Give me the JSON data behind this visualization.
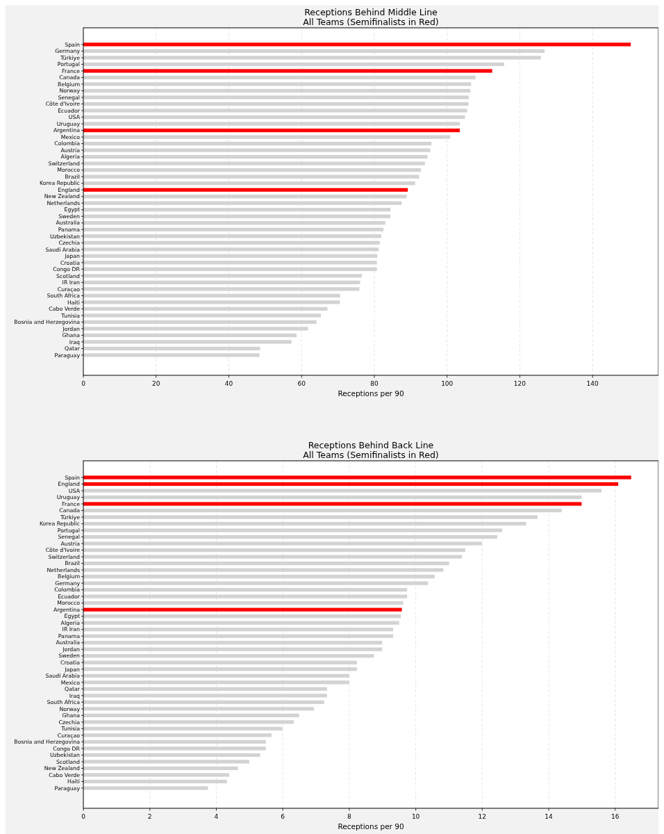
{
  "chart_data": [
    {
      "type": "bar",
      "orientation": "horizontal",
      "title": "Receptions Behind Middle Line",
      "subtitle": "All Teams (Semifinalists in Red)",
      "xlabel": "Receptions per 90",
      "categories": [
        "Spain",
        "Germany",
        "Türkiye",
        "Portugal",
        "France",
        "Canada",
        "Belgium",
        "Norway",
        "Senegal",
        "Côte d'Ivoire",
        "Ecuador",
        "USA",
        "Uruguay",
        "Argentina",
        "Mexico",
        "Colombia",
        "Austria",
        "Algeria",
        "Switzerland",
        "Morocco",
        "Brazil",
        "Korea Republic",
        "England",
        "New Zealand",
        "Netherlands",
        "Egypt",
        "Sweden",
        "Australia",
        "Panama",
        "Uzbekistan",
        "Czechia",
        "Saudi Arabia",
        "Japan",
        "Croatia",
        "Congo DR",
        "Scotland",
        "IR Iran",
        "Curaçao",
        "South Africa",
        "Haiti",
        "Cabo Verde",
        "Tunisia",
        "Bosnia and Herzegovina",
        "Jordan",
        "Ghana",
        "Iraq",
        "Qatar",
        "Paraguay"
      ],
      "values": [
        150.5,
        126.8,
        125.8,
        115.7,
        112.4,
        107.8,
        106.6,
        106.4,
        106.0,
        105.9,
        105.5,
        104.9,
        103.5,
        103.5,
        100.9,
        95.7,
        95.4,
        94.6,
        93.9,
        92.8,
        92.3,
        91.2,
        89.2,
        88.9,
        87.5,
        84.4,
        84.4,
        83.0,
        82.5,
        81.9,
        81.5,
        81.2,
        80.8,
        80.7,
        80.7,
        76.6,
        76.1,
        75.9,
        70.6,
        70.5,
        67.1,
        65.3,
        64.1,
        61.8,
        58.6,
        57.2,
        48.6,
        48.4
      ],
      "colors": [
        "#ff0000",
        "#d3d3d3",
        "#d3d3d3",
        "#d3d3d3",
        "#ff0000",
        "#d3d3d3",
        "#d3d3d3",
        "#d3d3d3",
        "#d3d3d3",
        "#d3d3d3",
        "#d3d3d3",
        "#d3d3d3",
        "#d3d3d3",
        "#ff0000",
        "#d3d3d3",
        "#d3d3d3",
        "#d3d3d3",
        "#d3d3d3",
        "#d3d3d3",
        "#d3d3d3",
        "#d3d3d3",
        "#d3d3d3",
        "#ff0000",
        "#d3d3d3",
        "#d3d3d3",
        "#d3d3d3",
        "#d3d3d3",
        "#d3d3d3",
        "#d3d3d3",
        "#d3d3d3",
        "#d3d3d3",
        "#d3d3d3",
        "#d3d3d3",
        "#d3d3d3",
        "#d3d3d3",
        "#d3d3d3",
        "#d3d3d3",
        "#d3d3d3",
        "#d3d3d3",
        "#d3d3d3",
        "#d3d3d3",
        "#d3d3d3",
        "#d3d3d3",
        "#d3d3d3",
        "#d3d3d3",
        "#d3d3d3",
        "#d3d3d3",
        "#d3d3d3"
      ],
      "xlim": [
        0,
        158.1
      ],
      "xticks": [
        0,
        20,
        40,
        60,
        80,
        100,
        120,
        140
      ],
      "grid": "x"
    },
    {
      "type": "bar",
      "orientation": "horizontal",
      "title": "Receptions Behind Back Line",
      "subtitle": "All Teams (Semifinalists in Red)",
      "xlabel": "Receptions per 90",
      "categories": [
        "Spain",
        "England",
        "USA",
        "Uruguay",
        "France",
        "Canada",
        "Türkiye",
        "Korea Republic",
        "Portugal",
        "Senegal",
        "Austria",
        "Côte d'Ivoire",
        "Switzerland",
        "Brazil",
        "Netherlands",
        "Belgium",
        "Germany",
        "Colombia",
        "Ecuador",
        "Morocco",
        "Argentina",
        "Egypt",
        "Algeria",
        "IR Iran",
        "Panama",
        "Australia",
        "Jordan",
        "Sweden",
        "Croatia",
        "Japan",
        "Saudi Arabia",
        "Mexico",
        "Qatar",
        "Iraq",
        "South Africa",
        "Norway",
        "Ghana",
        "Czechia",
        "Tunisia",
        "Curaçao",
        "Bosnia and Herzegovina",
        "Congo DR",
        "Uzbekistan",
        "Scotland",
        "New Zealand",
        "Cabo Verde",
        "Haiti",
        "Paraguay"
      ],
      "values": [
        16.48,
        16.09,
        15.59,
        14.99,
        14.99,
        14.39,
        13.66,
        13.32,
        12.6,
        12.45,
        11.99,
        11.49,
        11.39,
        11.0,
        10.83,
        10.57,
        10.37,
        9.74,
        9.74,
        9.62,
        9.58,
        9.55,
        9.5,
        9.32,
        9.32,
        8.99,
        8.99,
        8.74,
        8.23,
        8.23,
        8.0,
        8.0,
        7.33,
        7.33,
        7.24,
        6.94,
        6.49,
        6.33,
        5.99,
        5.66,
        5.49,
        5.49,
        5.32,
        4.99,
        4.65,
        4.39,
        4.32,
        3.75
      ],
      "colors": [
        "#ff0000",
        "#ff0000",
        "#d3d3d3",
        "#d3d3d3",
        "#ff0000",
        "#d3d3d3",
        "#d3d3d3",
        "#d3d3d3",
        "#d3d3d3",
        "#d3d3d3",
        "#d3d3d3",
        "#d3d3d3",
        "#d3d3d3",
        "#d3d3d3",
        "#d3d3d3",
        "#d3d3d3",
        "#d3d3d3",
        "#d3d3d3",
        "#d3d3d3",
        "#d3d3d3",
        "#ff0000",
        "#d3d3d3",
        "#d3d3d3",
        "#d3d3d3",
        "#d3d3d3",
        "#d3d3d3",
        "#d3d3d3",
        "#d3d3d3",
        "#d3d3d3",
        "#d3d3d3",
        "#d3d3d3",
        "#d3d3d3",
        "#d3d3d3",
        "#d3d3d3",
        "#d3d3d3",
        "#d3d3d3",
        "#d3d3d3",
        "#d3d3d3",
        "#d3d3d3",
        "#d3d3d3",
        "#d3d3d3",
        "#d3d3d3",
        "#d3d3d3",
        "#d3d3d3",
        "#d3d3d3",
        "#d3d3d3",
        "#d3d3d3",
        "#d3d3d3"
      ],
      "xlim": [
        0,
        17.3
      ],
      "xticks": [
        0,
        2,
        4,
        6,
        8,
        10,
        12,
        14,
        16
      ],
      "grid": "x"
    }
  ]
}
